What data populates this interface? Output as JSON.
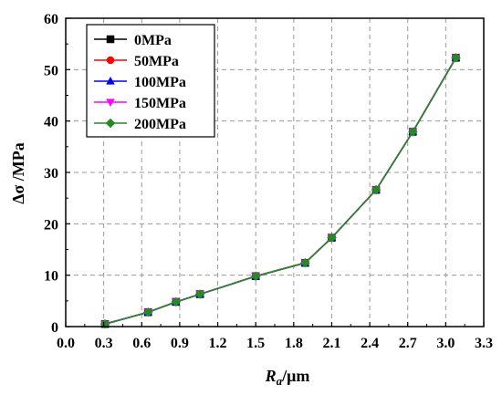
{
  "chart_data": {
    "type": "line",
    "xlabel": {
      "main": "R",
      "sub": "a",
      "rest": "/μm"
    },
    "ylabel": "Δσ /MPa",
    "xlim": [
      0.0,
      3.3
    ],
    "ylim": [
      0,
      60
    ],
    "xticks": [
      "0.0",
      "0.3",
      "0.6",
      "0.9",
      "1.2",
      "1.5",
      "1.8",
      "2.1",
      "2.4",
      "2.7",
      "3.0",
      "3.3"
    ],
    "yticks": [
      "0",
      "10",
      "20",
      "30",
      "40",
      "50",
      "60"
    ],
    "grid": true,
    "legend_position": "top-left",
    "x": [
      0.31,
      0.65,
      0.87,
      1.06,
      1.5,
      1.89,
      2.1,
      2.45,
      2.74,
      3.08
    ],
    "series": [
      {
        "name": "0MPa",
        "color": "#000000",
        "marker": "square",
        "values": [
          0.5,
          2.8,
          4.8,
          6.3,
          9.8,
          12.4,
          17.3,
          26.6,
          37.9,
          52.3
        ]
      },
      {
        "name": "50MPa",
        "color": "#ff0000",
        "marker": "circle",
        "values": [
          0.5,
          2.8,
          4.8,
          6.3,
          9.8,
          12.4,
          17.3,
          26.6,
          37.9,
          52.3
        ]
      },
      {
        "name": "100MPa",
        "color": "#0000ff",
        "marker": "triangle-up",
        "values": [
          0.5,
          2.8,
          4.8,
          6.3,
          9.8,
          12.4,
          17.3,
          26.6,
          37.9,
          52.3
        ]
      },
      {
        "name": "150MPa",
        "color": "#ff00ff",
        "marker": "triangle-down",
        "values": [
          0.5,
          2.8,
          4.8,
          6.3,
          9.8,
          12.4,
          17.3,
          26.6,
          37.9,
          52.3
        ]
      },
      {
        "name": "200MPa",
        "color": "#228b22",
        "marker": "diamond",
        "values": [
          0.5,
          2.8,
          4.8,
          6.3,
          9.8,
          12.4,
          17.3,
          26.6,
          37.9,
          52.3
        ]
      }
    ]
  }
}
